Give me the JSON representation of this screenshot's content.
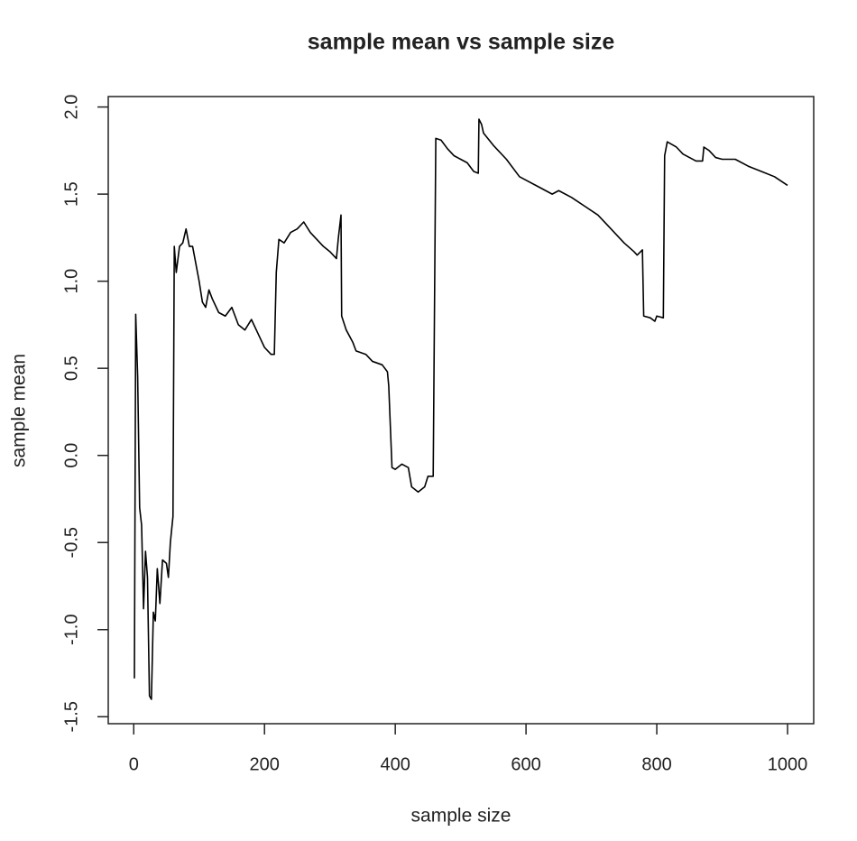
{
  "chart_data": {
    "type": "line",
    "title": "sample mean vs sample size",
    "x_label": "sample size",
    "y_label": "sample mean",
    "xlim": [
      -39,
      1040
    ],
    "ylim": [
      -1.54,
      2.06
    ],
    "xticks": [
      0,
      200,
      400,
      600,
      800,
      1000
    ],
    "yticks": [
      -1.5,
      {
        "value": -1,
        "label": "-1.0"
      },
      -0.5,
      {
        "value": 0,
        "label": "0.0"
      },
      0.5,
      {
        "value": 1,
        "label": "1.0"
      },
      1.5,
      {
        "value": 2,
        "label": "2.0"
      }
    ],
    "series": [
      {
        "name": "sample mean",
        "color": "#000000",
        "x": [
          1,
          3,
          6,
          9,
          12,
          15,
          18,
          21,
          24,
          27,
          30,
          33,
          36,
          40,
          44,
          50,
          53,
          56,
          60,
          62,
          65,
          70,
          75,
          80,
          85,
          90,
          95,
          100,
          105,
          110,
          115,
          120,
          130,
          140,
          150,
          160,
          170,
          180,
          190,
          200,
          210,
          215,
          218,
          222,
          230,
          240,
          250,
          260,
          270,
          280,
          290,
          300,
          310,
          313,
          317,
          318,
          325,
          335,
          340,
          355,
          365,
          380,
          388,
          390,
          395,
          400,
          410,
          420,
          425,
          435,
          445,
          450,
          458,
          462,
          470,
          480,
          490,
          500,
          510,
          520,
          527,
          528,
          532,
          535,
          550,
          570,
          590,
          600,
          620,
          640,
          650,
          670,
          690,
          710,
          730,
          750,
          765,
          770,
          778,
          780,
          790,
          797,
          800,
          810,
          812,
          816,
          830,
          840,
          850,
          860,
          870,
          872,
          880,
          890,
          900,
          920,
          940,
          960,
          980,
          1000
        ],
        "values": [
          -1.28,
          0.81,
          0.45,
          -0.3,
          -0.4,
          -0.88,
          -0.55,
          -0.7,
          -1.38,
          -1.4,
          -0.9,
          -0.95,
          -0.65,
          -0.85,
          -0.6,
          -0.62,
          -0.7,
          -0.5,
          -0.35,
          1.2,
          1.05,
          1.2,
          1.22,
          1.3,
          1.2,
          1.2,
          1.1,
          1.0,
          0.88,
          0.85,
          0.95,
          0.9,
          0.82,
          0.8,
          0.85,
          0.75,
          0.72,
          0.78,
          0.7,
          0.62,
          0.58,
          0.58,
          1.05,
          1.24,
          1.22,
          1.28,
          1.3,
          1.34,
          1.28,
          1.24,
          1.2,
          1.17,
          1.13,
          1.25,
          1.38,
          0.8,
          0.72,
          0.65,
          0.6,
          0.58,
          0.54,
          0.52,
          0.48,
          0.4,
          -0.07,
          -0.08,
          -0.05,
          -0.07,
          -0.18,
          -0.21,
          -0.18,
          -0.12,
          -0.12,
          1.82,
          1.81,
          1.76,
          1.72,
          1.7,
          1.68,
          1.63,
          1.62,
          1.93,
          1.9,
          1.85,
          1.78,
          1.7,
          1.6,
          1.58,
          1.54,
          1.5,
          1.52,
          1.48,
          1.43,
          1.38,
          1.3,
          1.22,
          1.17,
          1.15,
          1.18,
          0.8,
          0.79,
          0.77,
          0.8,
          0.79,
          1.72,
          1.8,
          1.77,
          1.73,
          1.71,
          1.69,
          1.69,
          1.77,
          1.75,
          1.71,
          1.7,
          1.7,
          1.66,
          1.63,
          1.6,
          1.55
        ]
      }
    ]
  }
}
